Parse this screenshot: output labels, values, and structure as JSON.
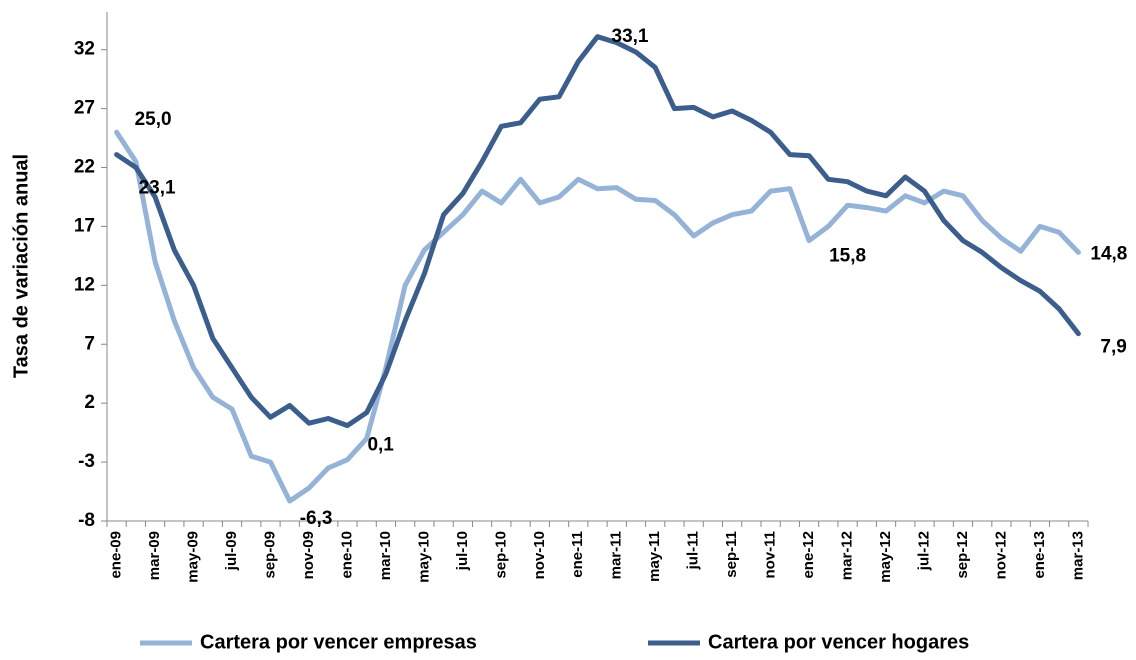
{
  "chart_data": {
    "type": "line",
    "y_label": "Tasa de variación anual",
    "categories": [
      "ene-09",
      null,
      "mar-09",
      null,
      "may-09",
      null,
      "jul-09",
      null,
      "sep-09",
      null,
      "nov-09",
      null,
      "ene-10",
      null,
      "mar-10",
      null,
      "may-10",
      null,
      "jul-10",
      null,
      "sep-10",
      null,
      "nov-10",
      null,
      "ene-11",
      null,
      "mar-11",
      null,
      "may-11",
      null,
      "jul-11",
      null,
      "sep-11",
      null,
      "nov-11",
      null,
      "ene-12",
      null,
      "mar-12",
      null,
      "may-12",
      null,
      "jul-12",
      null,
      "sep-12",
      null,
      "nov-12",
      null,
      "ene-13",
      null,
      "mar-13"
    ],
    "series": [
      {
        "name": "Cartera por vencer empresas",
        "color": "#95b3d7",
        "values": [
          25.0,
          22.5,
          14,
          9,
          5,
          2.5,
          1.5,
          -2.5,
          -3,
          -6.3,
          -5.2,
          -3.5,
          -2.8,
          -1,
          5,
          12,
          15,
          16.5,
          18,
          20,
          19,
          21,
          19,
          19.5,
          21,
          20.2,
          20.3,
          19.3,
          19.2,
          18,
          16.2,
          17.3,
          18,
          18.3,
          20,
          20.2,
          15.8,
          17,
          18.8,
          18.6,
          18.3,
          19.6,
          19,
          20,
          19.6,
          17.5,
          16,
          14.9,
          17,
          16.5,
          14.8
        ],
        "value_labels": [
          "25,0",
          null,
          null,
          null,
          null,
          null,
          null,
          null,
          null,
          "-6,3",
          null,
          null,
          null,
          null,
          null,
          null,
          null,
          null,
          null,
          null,
          null,
          null,
          null,
          null,
          null,
          null,
          null,
          null,
          null,
          null,
          null,
          null,
          null,
          null,
          null,
          null,
          "15,8",
          null,
          null,
          null,
          null,
          null,
          null,
          null,
          null,
          null,
          null,
          null,
          null,
          null,
          "14,8"
        ]
      },
      {
        "name": "Cartera por vencer hogares",
        "color": "#3b5e8c",
        "values": [
          23.1,
          22,
          19.5,
          15,
          12,
          7.5,
          5,
          2.5,
          0.8,
          1.8,
          0.3,
          0.7,
          0.1,
          1.2,
          4.5,
          9,
          13,
          18,
          19.8,
          22.5,
          25.5,
          25.8,
          27.8,
          28,
          31,
          33.1,
          32.6,
          31.8,
          30.5,
          27,
          27.1,
          26.3,
          26.8,
          26,
          25,
          23.1,
          23,
          21,
          20.8,
          20,
          19.6,
          21.2,
          20,
          17.5,
          15.8,
          14.8,
          13.5,
          12.4,
          11.5,
          10,
          7.9
        ],
        "value_labels": [
          "23,1",
          null,
          null,
          null,
          null,
          null,
          null,
          null,
          null,
          null,
          null,
          null,
          "0,1",
          null,
          null,
          null,
          null,
          null,
          null,
          null,
          null,
          null,
          null,
          null,
          null,
          "33,1",
          null,
          null,
          null,
          null,
          null,
          null,
          null,
          null,
          null,
          null,
          null,
          null,
          null,
          null,
          null,
          null,
          null,
          null,
          null,
          null,
          null,
          null,
          null,
          null,
          "7,9"
        ]
      }
    ],
    "ylim": [
      -8,
      35.2
    ],
    "yticks": [
      -8,
      -3,
      2,
      7,
      12,
      17,
      22,
      27,
      32
    ],
    "grid": false,
    "legend": "bottom"
  }
}
